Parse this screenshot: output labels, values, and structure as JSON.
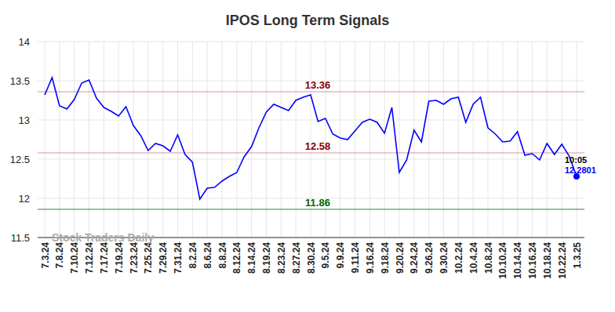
{
  "chart_data": {
    "type": "line",
    "title": "IPOS Long Term Signals",
    "categories": [
      "7.3.24",
      null,
      "7.8.24",
      null,
      "7.10.24",
      null,
      "7.12.24",
      null,
      "7.17.24",
      null,
      "7.19.24",
      null,
      "7.23.24",
      null,
      "7.25.24",
      null,
      "7.29.24",
      null,
      "7.31.24",
      null,
      "8.2.24",
      null,
      "8.6.24",
      null,
      "8.8.24",
      null,
      "8.12.24",
      null,
      "8.14.24",
      null,
      "8.19.24",
      null,
      "8.23.24",
      null,
      "8.27.24",
      null,
      "8.30.24",
      null,
      "9.5.24",
      null,
      "9.9.24",
      null,
      "9.11.24",
      null,
      "9.16.24",
      null,
      "9.18.24",
      null,
      "9.20.24",
      null,
      "9.24.24",
      null,
      "9.26.24",
      null,
      "9.30.24",
      null,
      "10.2.24",
      null,
      "10.4.24",
      null,
      "10.8.24",
      null,
      "10.10.24",
      null,
      "10.14.24",
      null,
      "10.16.24",
      null,
      "10.18.24",
      null,
      "10.22.24",
      null,
      "1.3.25"
    ],
    "series": [
      {
        "name": "IPOS",
        "color": "#0000ff",
        "marker": "last",
        "values": [
          13.32,
          13.54,
          13.18,
          13.14,
          13.26,
          13.47,
          13.51,
          13.28,
          13.16,
          13.11,
          13.05,
          13.17,
          12.93,
          12.8,
          12.61,
          12.7,
          12.67,
          12.6,
          12.81,
          12.56,
          12.46,
          11.99,
          12.13,
          12.14,
          12.22,
          12.28,
          12.33,
          12.53,
          12.66,
          12.9,
          13.1,
          13.2,
          13.16,
          13.12,
          13.25,
          13.29,
          13.32,
          12.98,
          13.02,
          12.82,
          12.77,
          12.75,
          12.86,
          12.97,
          13.01,
          12.97,
          12.83,
          13.16,
          12.33,
          12.49,
          12.87,
          12.72,
          13.24,
          13.25,
          13.2,
          13.27,
          13.29,
          12.97,
          13.2,
          13.29,
          12.9,
          12.82,
          12.72,
          12.73,
          12.85,
          12.55,
          12.57,
          12.49,
          12.7,
          12.56,
          12.69,
          12.54,
          12.2801
        ]
      }
    ],
    "ylim": [
      11.5,
      14
    ],
    "yticks": [
      11.5,
      12,
      12.5,
      13,
      13.5,
      14
    ],
    "grid": true,
    "reference_lines": [
      {
        "value": 13.36,
        "label": "13.36",
        "color": "#8b0000"
      },
      {
        "value": 12.58,
        "label": "12.58",
        "color": "#8b0000"
      },
      {
        "value": 11.86,
        "label": "11.86",
        "color": "#006400"
      }
    ],
    "annotations": [
      {
        "text": "10:05"
      },
      {
        "text": "12.2801"
      },
      {
        "text": "Stock Traders Daily"
      }
    ]
  }
}
